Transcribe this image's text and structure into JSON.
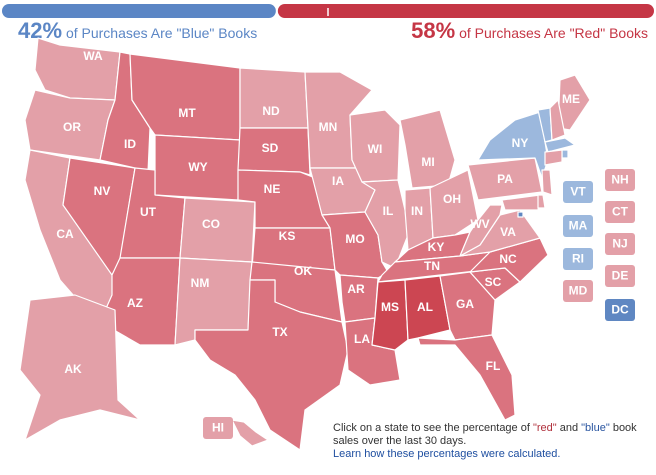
{
  "header": {
    "blue": {
      "value": 42,
      "label": "42%",
      "text": "of Purchases Are \"Blue\" Books",
      "color": "#5b86c5"
    },
    "red": {
      "value": 58,
      "label": "58%",
      "text": "of Purchases Are \"Red\" Books",
      "color": "#c53645"
    }
  },
  "states": [
    {
      "label": "WA",
      "color": "#e3a0a8"
    },
    {
      "label": "OR",
      "color": "#e3a0a8"
    },
    {
      "label": "CA",
      "color": "#e3a0a8"
    },
    {
      "label": "NV",
      "color": "#da737f"
    },
    {
      "label": "ID",
      "color": "#da737f"
    },
    {
      "label": "MT",
      "color": "#da737f"
    },
    {
      "label": "WY",
      "color": "#da737f"
    },
    {
      "label": "UT",
      "color": "#da737f"
    },
    {
      "label": "AZ",
      "color": "#da737f"
    },
    {
      "label": "CO",
      "color": "#e3a0a8"
    },
    {
      "label": "NM",
      "color": "#e3a0a8"
    },
    {
      "label": "ND",
      "color": "#e3a0a8"
    },
    {
      "label": "SD",
      "color": "#da737f"
    },
    {
      "label": "NE",
      "color": "#da737f"
    },
    {
      "label": "KS",
      "color": "#da737f"
    },
    {
      "label": "OK",
      "color": "#da737f"
    },
    {
      "label": "TX",
      "color": "#da737f"
    },
    {
      "label": "MN",
      "color": "#e3a0a8"
    },
    {
      "label": "IA",
      "color": "#e3a0a8"
    },
    {
      "label": "MO",
      "color": "#da737f"
    },
    {
      "label": "AR",
      "color": "#da737f"
    },
    {
      "label": "LA",
      "color": "#da737f"
    },
    {
      "label": "WI",
      "color": "#e3a0a8"
    },
    {
      "label": "IL",
      "color": "#e3a0a8"
    },
    {
      "label": "MI",
      "color": "#e3a0a8"
    },
    {
      "label": "IN",
      "color": "#e3a0a8"
    },
    {
      "label": "OH",
      "color": "#e3a0a8"
    },
    {
      "label": "KY",
      "color": "#da737f"
    },
    {
      "label": "TN",
      "color": "#da737f"
    },
    {
      "label": "MS",
      "color": "#cc4652"
    },
    {
      "label": "AL",
      "color": "#cc4652"
    },
    {
      "label": "GA",
      "color": "#da737f"
    },
    {
      "label": "FL",
      "color": "#da737f"
    },
    {
      "label": "SC",
      "color": "#da737f"
    },
    {
      "label": "NC",
      "color": "#da737f"
    },
    {
      "label": "VA",
      "color": "#e3a0a8"
    },
    {
      "label": "WV",
      "color": "#e3a0a8"
    },
    {
      "label": "PA",
      "color": "#e3a0a8"
    },
    {
      "label": "NY",
      "color": "#9cb8dd"
    },
    {
      "label": "ME",
      "color": "#e3a0a8"
    },
    {
      "label": "AK",
      "color": "#e3a0a8"
    },
    {
      "label": "HI",
      "color": "#e3a0a8"
    },
    {
      "label": "VT",
      "color": "#9cb8dd"
    },
    {
      "label": "MA",
      "color": "#9cb8dd"
    },
    {
      "label": "RI",
      "color": "#9cb8dd"
    },
    {
      "label": "MD",
      "color": "#e3a0a8"
    },
    {
      "label": "NH",
      "color": "#e3a0a8"
    },
    {
      "label": "CT",
      "color": "#e3a0a8"
    },
    {
      "label": "NJ",
      "color": "#e3a0a8"
    },
    {
      "label": "DE",
      "color": "#e3a0a8"
    },
    {
      "label": "DC",
      "color": "#5f87c2"
    }
  ],
  "footer": {
    "text1": "Click on a state to see the percentage of ",
    "red": "\"red\"",
    "text2": " and ",
    "blue": "\"blue\"",
    "text3": " book sales over the last 30 days.",
    "link": "Learn how these percentages were calculated."
  }
}
